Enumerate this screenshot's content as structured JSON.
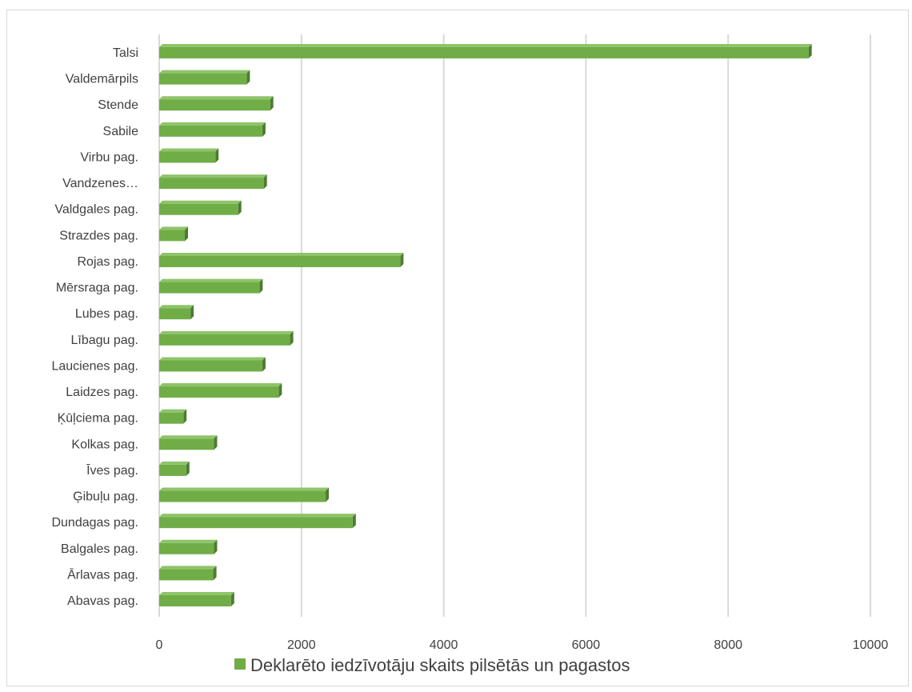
{
  "chart_data": {
    "type": "bar",
    "orientation": "horizontal",
    "categories": [
      "Abavas pag.",
      "Ārlavas pag.",
      "Balgales pag.",
      "Dundagas pag.",
      "Ģibuļu pag.",
      "Īves pag.",
      "Kolkas pag.",
      "Ķūļciema pag.",
      "Laidzes pag.",
      "Laucienes pag.",
      "Lībagu pag.",
      "Lubes pag.",
      "Mērsraga pag.",
      "Rojas pag.",
      "Strazdes pag.",
      "Valdgales pag.",
      "Vandzenes…",
      "Virbu pag.",
      "Sabile",
      "Stende",
      "Valdemārpils",
      "Talsi"
    ],
    "series": [
      {
        "name": "Deklarēto iedzīvotāju skaits pilsētās un pagastos",
        "values": [
          1010,
          760,
          770,
          2720,
          2340,
          380,
          770,
          340,
          1680,
          1450,
          1840,
          440,
          1410,
          3390,
          360,
          1110,
          1470,
          790,
          1450,
          1560,
          1230,
          9130
        ]
      }
    ],
    "xlim": [
      0,
      10000
    ],
    "xticks": [
      "0",
      "2000",
      "4000",
      "6000",
      "8000",
      "10000"
    ],
    "grid": true,
    "legend_position": "bottom",
    "bar_color": "#70ad47"
  }
}
